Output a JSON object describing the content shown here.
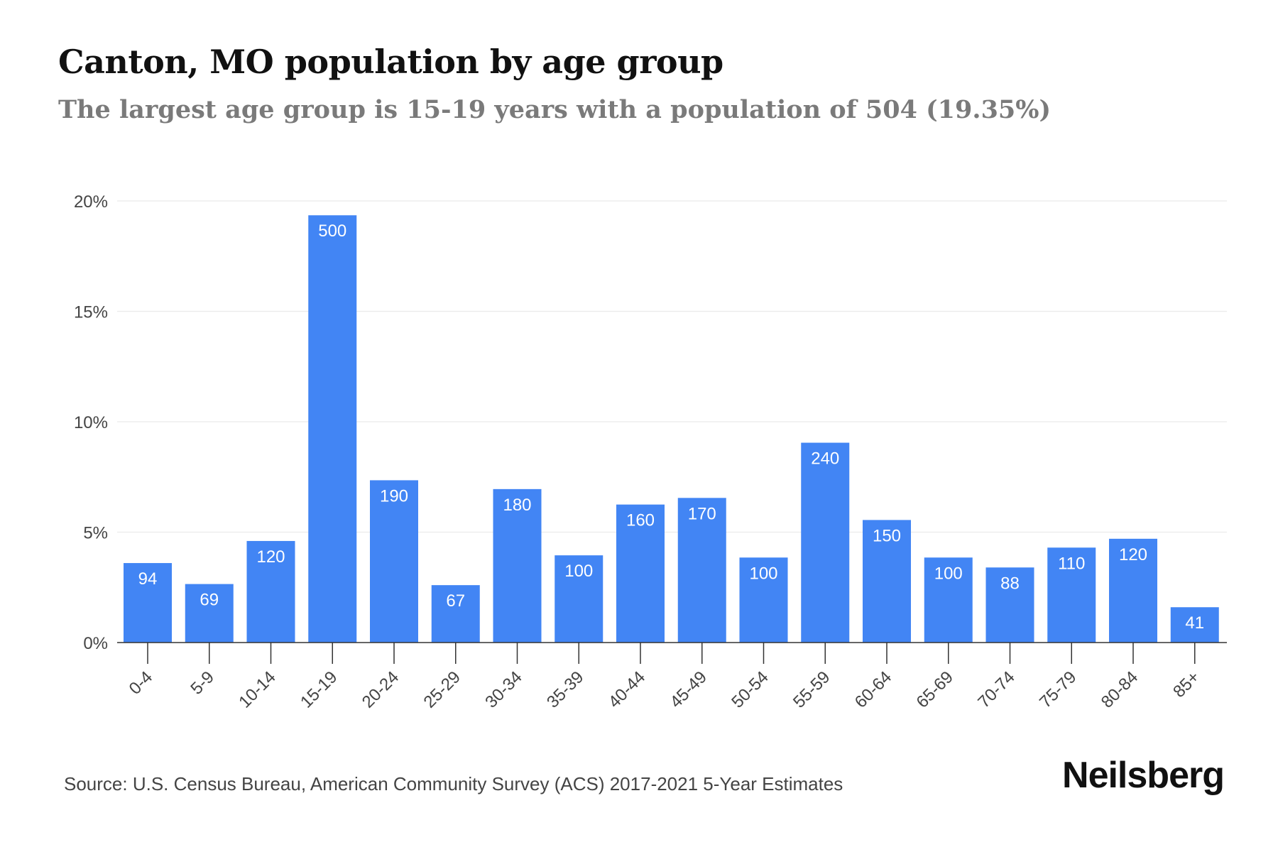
{
  "header": {
    "title": "Canton, MO population by age group",
    "subtitle": "The largest age group is 15-19 years with a population of 504 (19.35%)"
  },
  "footer": {
    "source": "Source: U.S. Census Bureau, American Community Survey (ACS) 2017-2021 5-Year Estimates",
    "brand": "Neilsberg"
  },
  "colors": {
    "bar": "#4285F4",
    "bar_label": "#ffffff",
    "grid": "#ebebeb",
    "axis": "#333333",
    "tick_text": "#444444"
  },
  "chart_data": {
    "type": "bar",
    "categories": [
      "0-4",
      "5-9",
      "10-14",
      "15-19",
      "20-24",
      "25-29",
      "30-34",
      "35-39",
      "40-44",
      "45-49",
      "50-54",
      "55-59",
      "60-64",
      "65-69",
      "70-74",
      "75-79",
      "80-84",
      "85+"
    ],
    "values": [
      3.6,
      2.65,
      4.6,
      19.35,
      7.35,
      2.6,
      6.95,
      3.95,
      6.25,
      6.55,
      3.85,
      9.05,
      5.55,
      3.85,
      3.4,
      4.3,
      4.7,
      1.6
    ],
    "data_labels": [
      "94",
      "69",
      "120",
      "500",
      "190",
      "67",
      "180",
      "100",
      "160",
      "170",
      "100",
      "240",
      "150",
      "100",
      "88",
      "110",
      "120",
      "41"
    ],
    "yticks": [
      0,
      5,
      10,
      15,
      20
    ],
    "ytick_labels": [
      "0%",
      "5%",
      "10%",
      "15%",
      "20%"
    ],
    "ylim": [
      0,
      20
    ],
    "grid": true,
    "legend": "none",
    "xlabel": "",
    "ylabel": ""
  }
}
